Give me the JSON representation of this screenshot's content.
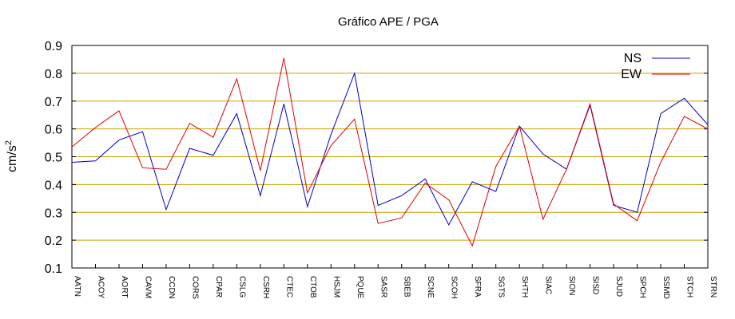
{
  "chart_data": {
    "type": "line",
    "title": "Gráfico  APE / PGA",
    "ylabel": "cm/s",
    "ylabel_superscript": "2",
    "ylim": [
      0.1,
      0.9
    ],
    "yticks": [
      "0.1",
      "0.2",
      "0.3",
      "0.4",
      "0.5",
      "0.6",
      "0.7",
      "0.8",
      "0.9"
    ],
    "grid": "horizontal",
    "legend_position": "top-right",
    "categories": [
      "AATN",
      "ACOY",
      "AORT",
      "CAVM",
      "CCDN",
      "CORS",
      "CPAR",
      "CSLG",
      "CSRH",
      "CTEC",
      "CTOB",
      "HSJM",
      "PQUE",
      "SASR",
      "SBEB",
      "SCNE",
      "SCOH",
      "SFRA",
      "SGTS",
      "SHTH",
      "SIAC",
      "SION",
      "SISD",
      "SJUD",
      "SPCH",
      "SSMD",
      "STCH",
      "STRN"
    ],
    "series": [
      {
        "name": "NS",
        "color": "#0000cc",
        "values": [
          0.48,
          0.485,
          0.56,
          0.59,
          0.31,
          0.53,
          0.505,
          0.655,
          0.36,
          0.69,
          0.32,
          0.58,
          0.8,
          0.325,
          0.36,
          0.42,
          0.255,
          0.41,
          0.375,
          0.61,
          0.51,
          0.455,
          0.685,
          0.325,
          0.3,
          0.655,
          0.71,
          0.615
        ]
      },
      {
        "name": "EW",
        "color": "#e00000",
        "values": [
          0.535,
          0.605,
          0.665,
          0.46,
          0.455,
          0.62,
          0.57,
          0.78,
          0.45,
          0.855,
          0.37,
          0.54,
          0.635,
          0.26,
          0.28,
          0.405,
          0.345,
          0.18,
          0.465,
          0.61,
          0.275,
          0.455,
          0.69,
          0.33,
          0.27,
          0.48,
          0.645,
          0.6
        ]
      }
    ]
  }
}
